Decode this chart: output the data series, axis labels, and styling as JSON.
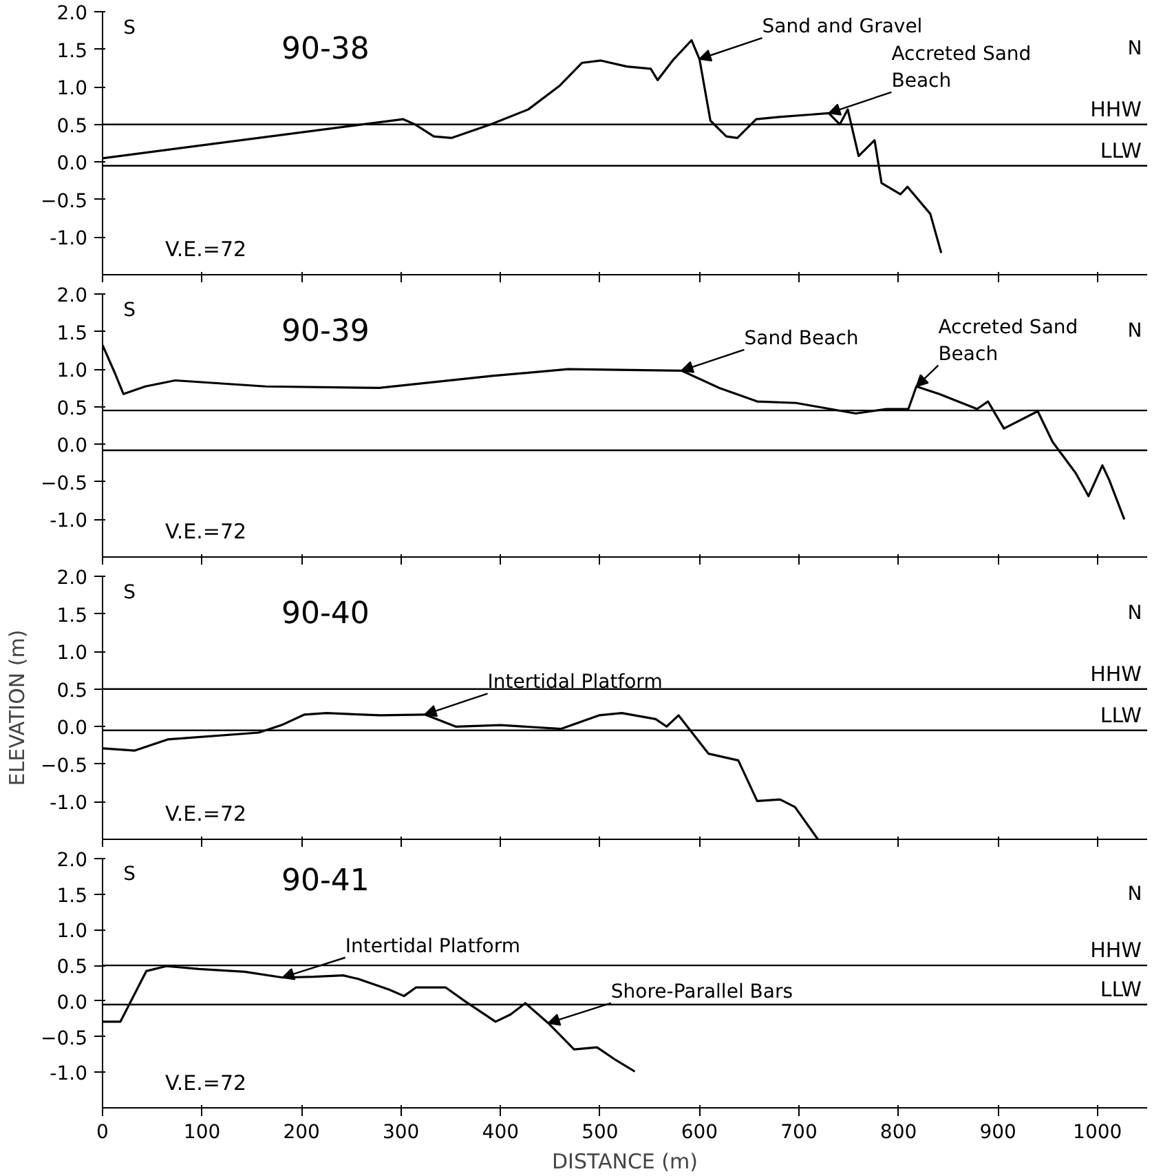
{
  "chart_data": [
    {
      "type": "line",
      "title": "90-38",
      "xlim": [
        0,
        1050
      ],
      "ylim": [
        -1.5,
        2.0
      ],
      "xticks": [
        0,
        100,
        200,
        300,
        400,
        500,
        600,
        700,
        800,
        900,
        1000
      ],
      "yticks": [
        {
          "value": -1.0,
          "label": "-1.0"
        },
        -0.5,
        {
          "value": 0,
          "label": "0.0"
        },
        0.5,
        {
          "value": 1,
          "label": "1.0"
        },
        1.5,
        {
          "value": 2,
          "label": "2.0"
        }
      ],
      "tick_labels": "y",
      "marker": "none",
      "line_style": "solid",
      "series": [
        {
          "color": "#000000",
          "x": [
            0,
            302,
            314,
            333,
            351,
            390,
            428,
            459,
            482,
            501,
            527,
            551,
            558,
            573,
            592,
            600,
            611,
            627,
            638,
            657,
            680,
            711,
            730,
            741,
            749,
            760,
            776,
            783,
            802,
            809,
            832,
            843
          ],
          "values": [
            0.05,
            0.57,
            0.5,
            0.34,
            0.32,
            0.5,
            0.7,
            1.01,
            1.32,
            1.35,
            1.27,
            1.24,
            1.09,
            1.35,
            1.62,
            1.37,
            0.55,
            0.34,
            0.32,
            0.57,
            0.6,
            0.63,
            0.65,
            0.5,
            0.7,
            0.08,
            0.29,
            -0.28,
            -0.43,
            -0.33,
            -0.69,
            -1.21
          ]
        }
      ],
      "ref_lines": [
        {
          "axis": "y",
          "value": 0.5,
          "label": "HHW"
        },
        {
          "axis": "y",
          "value": -0.05,
          "label": "LLW"
        }
      ],
      "annotations": [
        "S",
        "N",
        "V.E.=72",
        {
          "text": "Sand and Gravel",
          "x": 600,
          "y": 1.37
        },
        {
          "text": "Accreted Sand\nBeach",
          "x": 730,
          "y": 0.65
        }
      ]
    },
    {
      "type": "line",
      "title": "90-39",
      "xlim": [
        0,
        1050
      ],
      "ylim": [
        -1.5,
        2.0
      ],
      "xticks": [
        0,
        100,
        200,
        300,
        400,
        500,
        600,
        700,
        800,
        900,
        1000
      ],
      "yticks": [
        {
          "value": -1.0,
          "label": "-1.0"
        },
        -0.5,
        {
          "value": 0,
          "label": "0.0"
        },
        0.5,
        {
          "value": 1,
          "label": "1.0"
        },
        1.5,
        {
          "value": 2,
          "label": "2.0"
        }
      ],
      "tick_labels": "y",
      "marker": "none",
      "line_style": "solid",
      "series": [
        {
          "color": "#000000",
          "x": [
            0,
            12,
            21,
            43,
            73,
            164,
            278,
            392,
            468,
            582,
            620,
            658,
            697,
            757,
            788,
            810,
            818,
            841,
            879,
            890,
            906,
            940,
            955,
            978,
            991,
            1005,
            1012,
            1027
          ],
          "values": [
            1.32,
            0.96,
            0.67,
            0.77,
            0.85,
            0.77,
            0.75,
            0.91,
            1.0,
            0.98,
            0.75,
            0.57,
            0.55,
            0.41,
            0.47,
            0.47,
            0.77,
            0.67,
            0.47,
            0.57,
            0.21,
            0.44,
            0.03,
            -0.38,
            -0.69,
            -0.28,
            -0.48,
            -1.0
          ]
        }
      ],
      "ref_lines": [
        {
          "axis": "y",
          "value": 0.45
        },
        {
          "axis": "y",
          "value": -0.08
        }
      ],
      "annotations": [
        "S",
        "N",
        "V.E.=72",
        {
          "text": "Sand Beach",
          "x": 582,
          "y": 0.98
        },
        {
          "text": "Accreted Sand\nBeach",
          "x": 818,
          "y": 0.77
        }
      ]
    },
    {
      "type": "line",
      "title": "90-40",
      "ylabel": "ELEVATION (m)",
      "xlim": [
        0,
        1050
      ],
      "ylim": [
        -1.5,
        2.0
      ],
      "xticks": [
        0,
        100,
        200,
        300,
        400,
        500,
        600,
        700,
        800,
        900,
        1000
      ],
      "yticks": [
        {
          "value": -1.0,
          "label": "-1.0"
        },
        -0.5,
        {
          "value": 0,
          "label": "0.0"
        },
        0.5,
        {
          "value": 1,
          "label": "1.0"
        },
        1.5,
        {
          "value": 2,
          "label": "2.0"
        }
      ],
      "tick_labels": "y",
      "marker": "none",
      "line_style": "solid",
      "series": [
        {
          "color": "#000000",
          "x": [
            0,
            32,
            66,
            157,
            180,
            203,
            225,
            279,
            324,
            355,
            400,
            461,
            499,
            522,
            556,
            567,
            579,
            609,
            639,
            658,
            681,
            696,
            719
          ],
          "values": [
            -0.29,
            -0.32,
            -0.17,
            -0.08,
            0.02,
            0.16,
            0.18,
            0.15,
            0.16,
            0.0,
            0.02,
            -0.03,
            0.15,
            0.18,
            0.1,
            0.0,
            0.15,
            -0.36,
            -0.45,
            -0.99,
            -0.97,
            -1.07,
            -1.5
          ]
        }
      ],
      "ref_lines": [
        {
          "axis": "y",
          "value": 0.5,
          "label": "HHW"
        },
        {
          "axis": "y",
          "value": -0.05,
          "label": "LLW"
        }
      ],
      "annotations": [
        "S",
        "N",
        "V.E.=72",
        {
          "text": "Intertidal Platform",
          "x": 324,
          "y": 0.16
        }
      ]
    },
    {
      "type": "line",
      "title": "90-41",
      "xlabel": "DISTANCE (m)",
      "xlim": [
        0,
        1050
      ],
      "ylim": [
        -1.5,
        2.0
      ],
      "xticks": [
        0,
        100,
        200,
        300,
        400,
        500,
        600,
        700,
        800,
        900,
        1000
      ],
      "yticks": [
        {
          "value": -1.0,
          "label": "-1.0"
        },
        -0.5,
        {
          "value": 0,
          "label": "0.0"
        },
        0.5,
        {
          "value": 1,
          "label": "1.0"
        },
        1.5,
        {
          "value": 2,
          "label": "2.0"
        }
      ],
      "marker": "none",
      "line_style": "solid",
      "series": [
        {
          "color": "#000000",
          "x": [
            0,
            18,
            44,
            64,
            97,
            143,
            181,
            212,
            242,
            257,
            288,
            303,
            315,
            345,
            364,
            395,
            410,
            425,
            448,
            474,
            497,
            516,
            535
          ],
          "values": [
            -0.29,
            -0.29,
            0.42,
            0.49,
            0.45,
            0.41,
            0.33,
            0.34,
            0.36,
            0.31,
            0.16,
            0.07,
            0.19,
            0.19,
            0.0,
            -0.29,
            -0.19,
            -0.03,
            -0.31,
            -0.68,
            -0.65,
            -0.83,
            -0.99
          ]
        }
      ],
      "ref_lines": [
        {
          "axis": "y",
          "value": 0.5,
          "label": "HHW"
        },
        {
          "axis": "y",
          "value": -0.05,
          "label": "LLW"
        }
      ],
      "annotations": [
        "S",
        "N",
        "V.E.=72",
        {
          "text": "Intertidal Platform",
          "x": 181,
          "y": 0.33
        },
        {
          "text": "Shore-Parallel Bars",
          "x": 448,
          "y": -0.31
        }
      ]
    }
  ]
}
